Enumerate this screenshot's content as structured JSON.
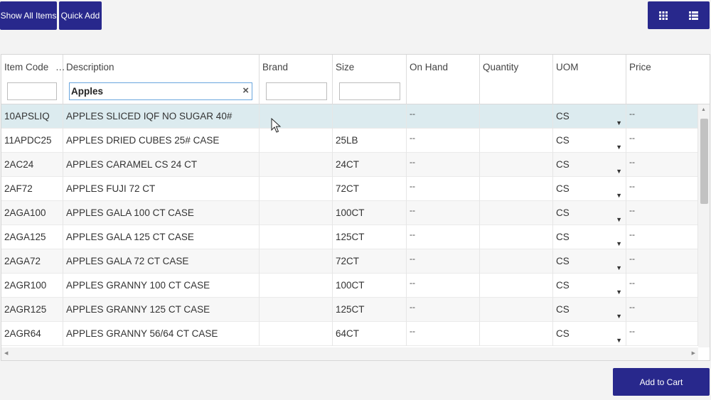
{
  "toolbar": {
    "show_all_label": "Show All Items",
    "quick_add_label": "Quick Add",
    "view_grid_icon": "grid-view-icon",
    "view_list_icon": "list-view-icon"
  },
  "columns": {
    "item_code": "Item Code",
    "description": "Description",
    "brand": "Brand",
    "size": "Size",
    "on_hand": "On Hand",
    "quantity": "Quantity",
    "uom": "UOM",
    "price": "Price"
  },
  "filters": {
    "description_value": "Apples"
  },
  "rows": [
    {
      "code": "10APSLIQ",
      "desc": "APPLES SLICED IQF NO SUGAR 40#",
      "brand": "",
      "size": "",
      "on_hand": "--",
      "uom": "CS",
      "price": "--"
    },
    {
      "code": "11APDC25",
      "desc": "APPLES DRIED CUBES 25# CASE",
      "brand": "",
      "size": "25LB",
      "on_hand": "--",
      "uom": "CS",
      "price": "--"
    },
    {
      "code": "2AC24",
      "desc": "APPLES CARAMEL CS 24 CT",
      "brand": "",
      "size": "24CT",
      "on_hand": "--",
      "uom": "CS",
      "price": "--"
    },
    {
      "code": "2AF72",
      "desc": "APPLES FUJI 72 CT",
      "brand": "",
      "size": "72CT",
      "on_hand": "--",
      "uom": "CS",
      "price": "--"
    },
    {
      "code": "2AGA100",
      "desc": "APPLES GALA 100 CT CASE",
      "brand": "",
      "size": "100CT",
      "on_hand": "--",
      "uom": "CS",
      "price": "--"
    },
    {
      "code": "2AGA125",
      "desc": "APPLES GALA 125 CT CASE",
      "brand": "",
      "size": "125CT",
      "on_hand": "--",
      "uom": "CS",
      "price": "--"
    },
    {
      "code": "2AGA72",
      "desc": "APPLES GALA 72 CT CASE",
      "brand": "",
      "size": "72CT",
      "on_hand": "--",
      "uom": "CS",
      "price": "--"
    },
    {
      "code": "2AGR100",
      "desc": "APPLES GRANNY 100 CT CASE",
      "brand": "",
      "size": "100CT",
      "on_hand": "--",
      "uom": "CS",
      "price": "--"
    },
    {
      "code": "2AGR125",
      "desc": "APPLES GRANNY 125 CT CASE",
      "brand": "",
      "size": "125CT",
      "on_hand": "--",
      "uom": "CS",
      "price": "--"
    },
    {
      "code": "2AGR64",
      "desc": "APPLES GRANNY 56/64 CT CASE",
      "brand": "",
      "size": "64CT",
      "on_hand": "--",
      "uom": "CS",
      "price": "--"
    }
  ],
  "footer": {
    "add_to_cart_label": "Add to Cart"
  },
  "colors": {
    "accent": "#28288c",
    "selected_row": "#dcebef"
  }
}
